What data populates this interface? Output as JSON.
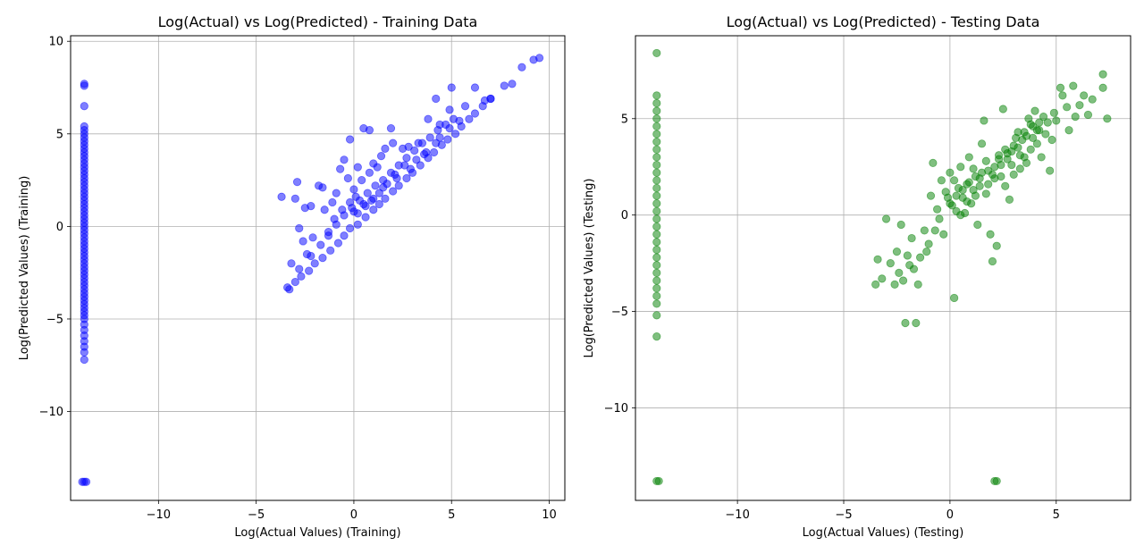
{
  "chart_data": [
    {
      "type": "scatter",
      "title": "Log(Actual) vs Log(Predicted) - Training Data",
      "xlabel": "Log(Actual Values) (Training)",
      "ylabel": "Log(Predicted Values) (Training)",
      "xlim": [
        -14.5,
        10.8
      ],
      "ylim": [
        -14.8,
        10.3
      ],
      "xticks": [
        -10,
        -5,
        0,
        5,
        10
      ],
      "xtick_labels": [
        "−10",
        "−5",
        "0",
        "5",
        "10"
      ],
      "yticks": [
        -10,
        -5,
        0,
        5,
        10
      ],
      "ytick_labels": [
        "−10",
        "−5",
        "0",
        "5",
        "10"
      ],
      "grid": true,
      "color": "#0000ff",
      "alpha": 0.5,
      "points": [
        [
          -13.8,
          7.7
        ],
        [
          -13.8,
          7.6
        ],
        [
          -13.8,
          6.5
        ],
        [
          -13.8,
          5.4
        ],
        [
          -13.8,
          5.2
        ],
        [
          -13.8,
          5.0
        ],
        [
          -13.8,
          4.8
        ],
        [
          -13.8,
          4.6
        ],
        [
          -13.8,
          4.4
        ],
        [
          -13.8,
          4.2
        ],
        [
          -13.8,
          4.0
        ],
        [
          -13.8,
          3.8
        ],
        [
          -13.8,
          3.6
        ],
        [
          -13.8,
          3.4
        ],
        [
          -13.8,
          3.2
        ],
        [
          -13.8,
          3.0
        ],
        [
          -13.8,
          2.8
        ],
        [
          -13.8,
          2.6
        ],
        [
          -13.8,
          2.4
        ],
        [
          -13.8,
          2.2
        ],
        [
          -13.8,
          2.0
        ],
        [
          -13.8,
          1.8
        ],
        [
          -13.8,
          1.6
        ],
        [
          -13.8,
          1.4
        ],
        [
          -13.8,
          1.2
        ],
        [
          -13.8,
          1.0
        ],
        [
          -13.8,
          0.8
        ],
        [
          -13.8,
          0.6
        ],
        [
          -13.8,
          0.4
        ],
        [
          -13.8,
          0.2
        ],
        [
          -13.8,
          0.0
        ],
        [
          -13.8,
          -0.2
        ],
        [
          -13.8,
          -0.4
        ],
        [
          -13.8,
          -0.6
        ],
        [
          -13.8,
          -0.8
        ],
        [
          -13.8,
          -1.0
        ],
        [
          -13.8,
          -1.2
        ],
        [
          -13.8,
          -1.4
        ],
        [
          -13.8,
          -1.6
        ],
        [
          -13.8,
          -1.8
        ],
        [
          -13.8,
          -2.0
        ],
        [
          -13.8,
          -2.2
        ],
        [
          -13.8,
          -2.4
        ],
        [
          -13.8,
          -2.6
        ],
        [
          -13.8,
          -2.8
        ],
        [
          -13.8,
          -3.0
        ],
        [
          -13.8,
          -3.2
        ],
        [
          -13.8,
          -3.4
        ],
        [
          -13.8,
          -3.6
        ],
        [
          -13.8,
          -3.8
        ],
        [
          -13.8,
          -4.0
        ],
        [
          -13.8,
          -4.2
        ],
        [
          -13.8,
          -4.4
        ],
        [
          -13.8,
          -4.6
        ],
        [
          -13.8,
          -4.8
        ],
        [
          -13.8,
          -5.0
        ],
        [
          -13.8,
          -5.3
        ],
        [
          -13.8,
          -5.6
        ],
        [
          -13.8,
          -5.9
        ],
        [
          -13.8,
          -6.2
        ],
        [
          -13.8,
          -6.5
        ],
        [
          -13.8,
          -6.8
        ],
        [
          -13.8,
          -7.2
        ],
        [
          -13.8,
          -13.8
        ],
        [
          -13.7,
          -13.8
        ],
        [
          -13.9,
          -13.8
        ],
        [
          -3.7,
          1.6
        ],
        [
          -3.3,
          -3.4
        ],
        [
          -3.2,
          -2.0
        ],
        [
          -3.0,
          1.5
        ],
        [
          -2.9,
          2.4
        ],
        [
          -2.8,
          -0.1
        ],
        [
          -2.6,
          -0.8
        ],
        [
          -2.5,
          1.0
        ],
        [
          -2.4,
          -1.5
        ],
        [
          -2.2,
          1.1
        ],
        [
          -2.1,
          -0.6
        ],
        [
          -1.8,
          2.2
        ],
        [
          -1.6,
          2.1
        ],
        [
          -1.5,
          0.9
        ],
        [
          -1.3,
          -0.3
        ],
        [
          -1.1,
          1.3
        ],
        [
          -0.9,
          1.8
        ],
        [
          -0.7,
          3.1
        ],
        [
          -0.5,
          3.6
        ],
        [
          -0.3,
          2.6
        ],
        [
          -0.2,
          4.7
        ],
        [
          0.0,
          0.8
        ],
        [
          0.2,
          3.2
        ],
        [
          0.5,
          5.3
        ],
        [
          0.8,
          5.2
        ],
        [
          1.0,
          3.4
        ],
        [
          1.4,
          3.8
        ],
        [
          1.6,
          4.2
        ],
        [
          1.9,
          5.3
        ],
        [
          2.0,
          4.5
        ],
        [
          2.5,
          4.2
        ],
        [
          2.8,
          4.3
        ],
        [
          3.3,
          4.5
        ],
        [
          3.8,
          5.8
        ],
        [
          4.2,
          6.9
        ],
        [
          4.4,
          5.5
        ],
        [
          4.9,
          6.3
        ],
        [
          5.0,
          7.5
        ],
        [
          5.7,
          6.5
        ],
        [
          6.2,
          7.5
        ],
        [
          6.7,
          6.8
        ],
        [
          7.0,
          6.9
        ],
        [
          7.7,
          7.6
        ],
        [
          8.1,
          7.7
        ],
        [
          8.6,
          8.6
        ],
        [
          9.2,
          9.0
        ],
        [
          9.5,
          9.1
        ],
        [
          -3.4,
          -3.3
        ],
        [
          -3.0,
          -3.0
        ],
        [
          -2.7,
          -2.7
        ],
        [
          -2.3,
          -2.4
        ],
        [
          -2.0,
          -2.0
        ],
        [
          -1.6,
          -1.7
        ],
        [
          -1.2,
          -1.3
        ],
        [
          -0.8,
          -0.9
        ],
        [
          -0.5,
          -0.5
        ],
        [
          -0.2,
          -0.1
        ],
        [
          0.2,
          0.1
        ],
        [
          0.6,
          0.5
        ],
        [
          1.0,
          0.9
        ],
        [
          1.3,
          1.2
        ],
        [
          1.6,
          1.5
        ],
        [
          2.0,
          1.9
        ],
        [
          2.3,
          2.2
        ],
        [
          2.7,
          2.6
        ],
        [
          3.0,
          2.9
        ],
        [
          3.4,
          3.3
        ],
        [
          3.8,
          3.7
        ],
        [
          4.1,
          4.0
        ],
        [
          4.5,
          4.4
        ],
        [
          4.8,
          4.7
        ],
        [
          5.2,
          5.0
        ],
        [
          5.5,
          5.4
        ],
        [
          5.9,
          5.8
        ],
        [
          6.2,
          6.1
        ],
        [
          6.6,
          6.5
        ],
        [
          7.0,
          6.9
        ],
        [
          -2.8,
          -2.3
        ],
        [
          -2.2,
          -1.6
        ],
        [
          -1.7,
          -1.0
        ],
        [
          -1.3,
          -0.5
        ],
        [
          -0.9,
          0.1
        ],
        [
          -0.5,
          0.6
        ],
        [
          -0.1,
          1.0
        ],
        [
          0.3,
          1.4
        ],
        [
          0.7,
          1.8
        ],
        [
          1.1,
          2.2
        ],
        [
          1.5,
          2.5
        ],
        [
          1.9,
          2.9
        ],
        [
          2.3,
          3.3
        ],
        [
          2.7,
          3.7
        ],
        [
          3.1,
          4.1
        ],
        [
          3.5,
          4.5
        ],
        [
          3.9,
          4.8
        ],
        [
          4.3,
          5.2
        ],
        [
          4.7,
          5.5
        ],
        [
          5.1,
          5.8
        ],
        [
          0.0,
          2.0
        ],
        [
          0.4,
          2.5
        ],
        [
          0.8,
          2.9
        ],
        [
          1.2,
          3.2
        ],
        [
          0.1,
          1.6
        ],
        [
          0.5,
          1.2
        ],
        [
          1.0,
          1.5
        ],
        [
          1.5,
          2.1
        ],
        [
          2.1,
          2.8
        ],
        [
          2.6,
          3.3
        ],
        [
          3.2,
          3.6
        ],
        [
          3.7,
          4.0
        ],
        [
          4.2,
          4.5
        ],
        [
          -1.0,
          0.4
        ],
        [
          -0.6,
          0.9
        ],
        [
          -0.2,
          1.3
        ],
        [
          0.2,
          0.7
        ],
        [
          0.6,
          1.1
        ],
        [
          0.9,
          1.4
        ],
        [
          1.3,
          1.8
        ],
        [
          1.7,
          2.3
        ],
        [
          2.2,
          2.6
        ],
        [
          2.9,
          3.1
        ],
        [
          3.6,
          3.9
        ],
        [
          4.4,
          4.8
        ],
        [
          4.9,
          5.3
        ],
        [
          5.4,
          5.7
        ]
      ]
    },
    {
      "type": "scatter",
      "title": "Log(Actual) vs Log(Predicted) - Testing Data",
      "xlabel": "Log(Actual Values) (Testing)",
      "ylabel": "Log(Predicted Values) (Testing)",
      "xlim": [
        -14.8,
        8.5
      ],
      "ylim": [
        -14.8,
        9.3
      ],
      "xticks": [
        -10,
        -5,
        0,
        5
      ],
      "xtick_labels": [
        "−10",
        "−5",
        "0",
        "5"
      ],
      "yticks": [
        -10,
        -5,
        0,
        5
      ],
      "ytick_labels": [
        "−10",
        "−5",
        "0",
        "5"
      ],
      "grid": true,
      "color": "#008000",
      "alpha": 0.5,
      "points": [
        [
          -13.8,
          8.4
        ],
        [
          -13.8,
          6.2
        ],
        [
          -13.8,
          5.8
        ],
        [
          -13.8,
          5.4
        ],
        [
          -13.8,
          5.0
        ],
        [
          -13.8,
          4.6
        ],
        [
          -13.8,
          4.2
        ],
        [
          -13.8,
          3.8
        ],
        [
          -13.8,
          3.4
        ],
        [
          -13.8,
          3.0
        ],
        [
          -13.8,
          2.6
        ],
        [
          -13.8,
          2.2
        ],
        [
          -13.8,
          1.8
        ],
        [
          -13.8,
          1.4
        ],
        [
          -13.8,
          1.0
        ],
        [
          -13.8,
          0.6
        ],
        [
          -13.8,
          0.2
        ],
        [
          -13.8,
          -0.2
        ],
        [
          -13.8,
          -0.6
        ],
        [
          -13.8,
          -1.0
        ],
        [
          -13.8,
          -1.4
        ],
        [
          -13.8,
          -1.8
        ],
        [
          -13.8,
          -2.2
        ],
        [
          -13.8,
          -2.6
        ],
        [
          -13.8,
          -3.0
        ],
        [
          -13.8,
          -3.4
        ],
        [
          -13.8,
          -3.8
        ],
        [
          -13.8,
          -4.2
        ],
        [
          -13.8,
          -4.6
        ],
        [
          -13.8,
          -5.2
        ],
        [
          -13.8,
          -6.3
        ],
        [
          -13.8,
          -13.8
        ],
        [
          -13.7,
          -13.8
        ],
        [
          2.1,
          -13.8
        ],
        [
          2.2,
          -13.8
        ],
        [
          -3.5,
          -3.6
        ],
        [
          -3.4,
          -2.3
        ],
        [
          -3.2,
          -3.3
        ],
        [
          -3.0,
          -0.2
        ],
        [
          -2.8,
          -2.5
        ],
        [
          -2.6,
          -3.6
        ],
        [
          -2.5,
          -1.9
        ],
        [
          -2.3,
          -0.5
        ],
        [
          -2.2,
          -3.4
        ],
        [
          -2.1,
          -5.6
        ],
        [
          -2.0,
          -2.1
        ],
        [
          -1.8,
          -1.2
        ],
        [
          -1.6,
          -5.6
        ],
        [
          -1.5,
          -3.6
        ],
        [
          -1.4,
          -2.2
        ],
        [
          -1.2,
          -0.8
        ],
        [
          -1.0,
          -1.5
        ],
        [
          -0.9,
          1.0
        ],
        [
          -0.8,
          2.7
        ],
        [
          -0.6,
          0.3
        ],
        [
          -0.5,
          -0.2
        ],
        [
          -0.4,
          1.8
        ],
        [
          -0.3,
          -1.0
        ],
        [
          -0.2,
          1.2
        ],
        [
          0.0,
          2.2
        ],
        [
          0.2,
          -4.3
        ],
        [
          0.1,
          0.5
        ],
        [
          0.3,
          0.2
        ],
        [
          0.4,
          1.4
        ],
        [
          0.5,
          2.5
        ],
        [
          0.6,
          0.9
        ],
        [
          0.7,
          0.1
        ],
        [
          0.8,
          1.6
        ],
        [
          0.9,
          3.0
        ],
        [
          1.0,
          0.6
        ],
        [
          1.1,
          1.3
        ],
        [
          1.2,
          2.0
        ],
        [
          1.3,
          -0.5
        ],
        [
          1.4,
          1.5
        ],
        [
          1.5,
          3.7
        ],
        [
          1.6,
          4.9
        ],
        [
          1.7,
          1.1
        ],
        [
          1.8,
          2.3
        ],
        [
          1.9,
          -1.0
        ],
        [
          2.0,
          -2.4
        ],
        [
          2.1,
          1.9
        ],
        [
          2.2,
          -1.6
        ],
        [
          2.3,
          3.1
        ],
        [
          2.4,
          2.6
        ],
        [
          2.5,
          5.5
        ],
        [
          2.6,
          1.5
        ],
        [
          2.7,
          2.9
        ],
        [
          2.8,
          0.8
        ],
        [
          2.9,
          3.3
        ],
        [
          3.0,
          2.1
        ],
        [
          3.1,
          4.0
        ],
        [
          3.2,
          3.5
        ],
        [
          3.3,
          2.4
        ],
        [
          3.4,
          3.9
        ],
        [
          3.5,
          4.3
        ],
        [
          3.6,
          2.7
        ],
        [
          3.7,
          5.0
        ],
        [
          3.8,
          3.4
        ],
        [
          3.9,
          4.6
        ],
        [
          4.0,
          5.4
        ],
        [
          4.1,
          3.7
        ],
        [
          4.2,
          4.4
        ],
        [
          4.3,
          3.0
        ],
        [
          4.4,
          5.1
        ],
        [
          4.5,
          4.2
        ],
        [
          4.6,
          4.8
        ],
        [
          4.7,
          2.3
        ],
        [
          4.8,
          3.9
        ],
        [
          4.9,
          5.3
        ],
        [
          5.0,
          4.9
        ],
        [
          5.2,
          6.6
        ],
        [
          5.3,
          6.2
        ],
        [
          5.5,
          5.6
        ],
        [
          5.6,
          4.4
        ],
        [
          5.8,
          6.7
        ],
        [
          5.9,
          5.1
        ],
        [
          6.1,
          5.7
        ],
        [
          6.3,
          6.2
        ],
        [
          6.5,
          5.2
        ],
        [
          6.7,
          6.0
        ],
        [
          7.2,
          7.3
        ],
        [
          7.2,
          6.6
        ],
        [
          7.4,
          5.0
        ],
        [
          0.0,
          0.6
        ],
        [
          0.3,
          1.0
        ],
        [
          0.6,
          1.3
        ],
        [
          0.9,
          1.7
        ],
        [
          1.2,
          1.0
        ],
        [
          1.5,
          2.2
        ],
        [
          1.8,
          1.6
        ],
        [
          2.1,
          2.5
        ],
        [
          2.4,
          2.0
        ],
        [
          2.7,
          3.2
        ],
        [
          3.0,
          3.6
        ],
        [
          3.3,
          3.1
        ],
        [
          3.6,
          4.1
        ],
        [
          3.9,
          4.0
        ],
        [
          4.2,
          4.8
        ],
        [
          0.2,
          1.8
        ],
        [
          0.5,
          0.0
        ],
        [
          0.8,
          0.7
        ],
        [
          1.1,
          2.4
        ],
        [
          1.4,
          1.9
        ],
        [
          1.7,
          2.8
        ],
        [
          2.0,
          2.1
        ],
        [
          2.3,
          2.9
        ],
        [
          2.6,
          3.4
        ],
        [
          2.9,
          2.6
        ],
        [
          3.2,
          4.3
        ],
        [
          3.5,
          3.0
        ],
        [
          3.8,
          4.7
        ],
        [
          4.1,
          4.4
        ],
        [
          -0.1,
          0.9
        ],
        [
          -0.7,
          -0.8
        ],
        [
          -1.1,
          -1.9
        ],
        [
          -1.7,
          -2.8
        ],
        [
          -2.4,
          -3.0
        ],
        [
          -1.9,
          -2.6
        ]
      ]
    }
  ]
}
